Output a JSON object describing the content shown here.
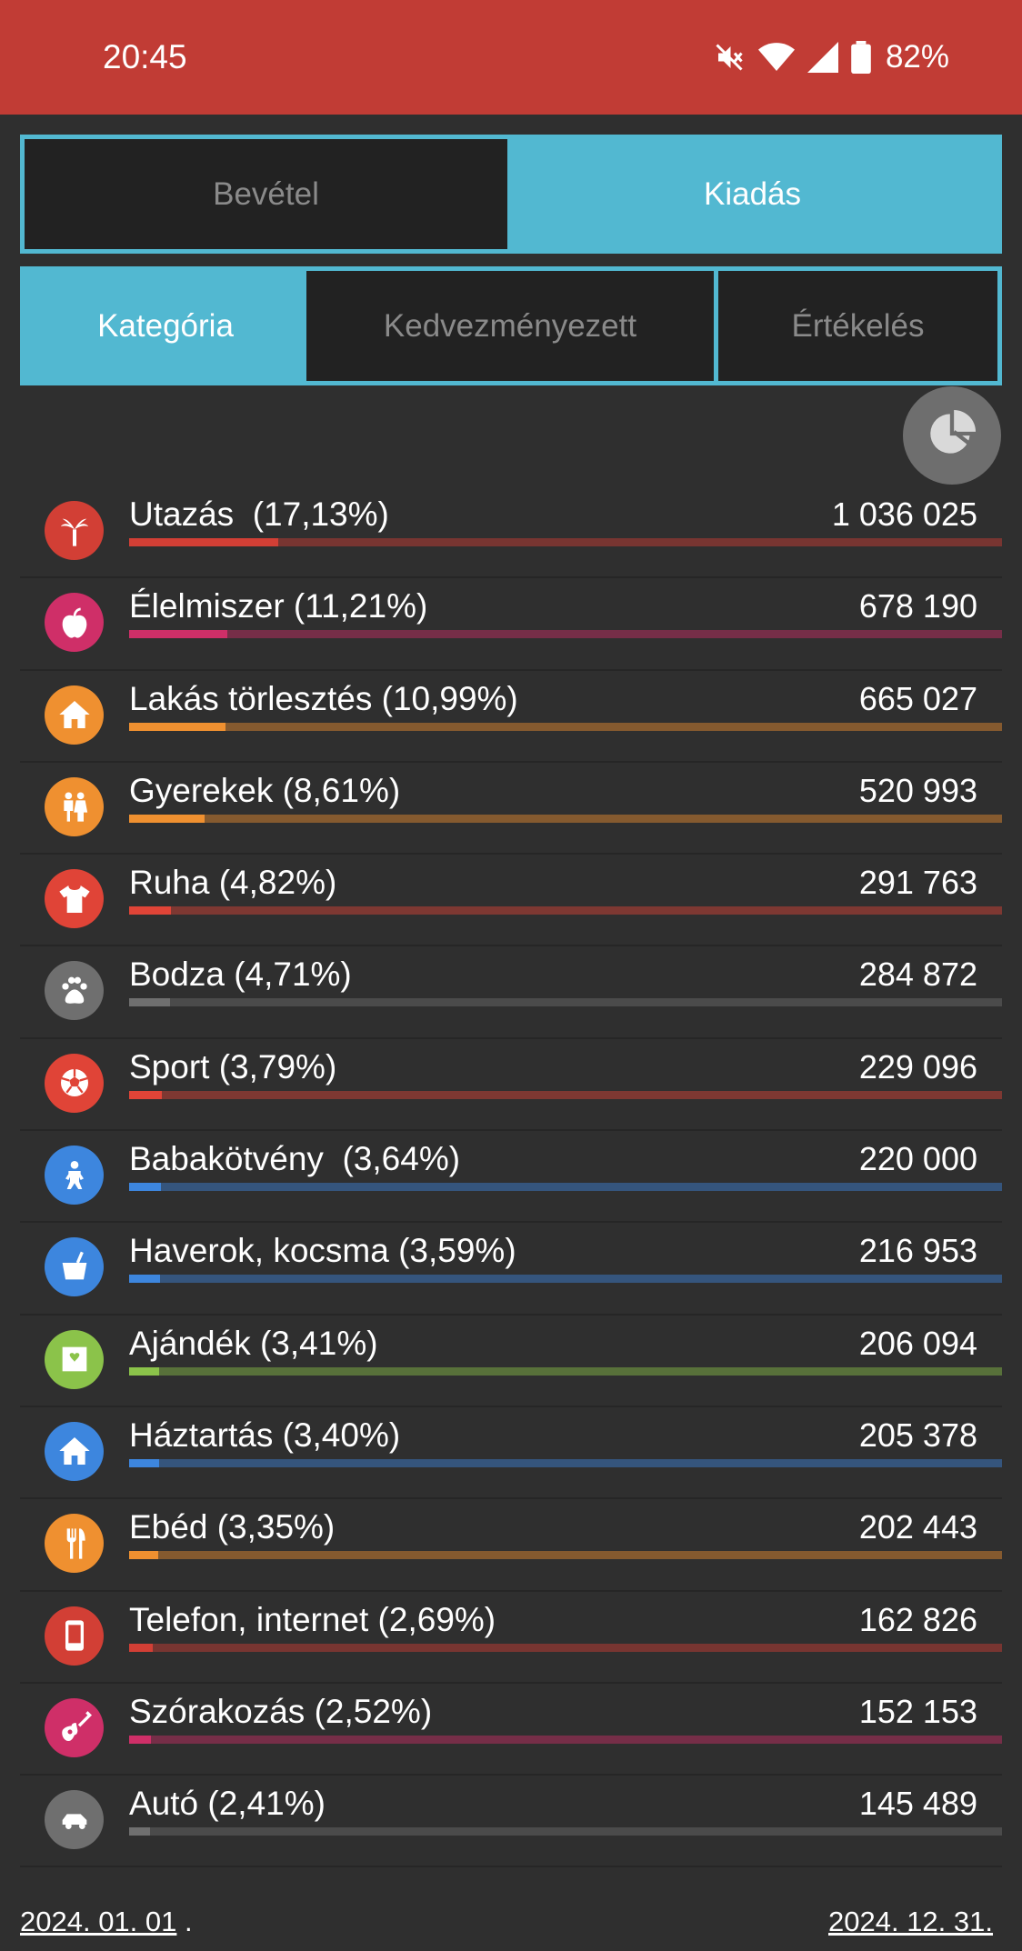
{
  "status_bar": {
    "time": "20:45",
    "battery": "82%",
    "icons": [
      "mute-icon",
      "wifi-icon",
      "signal-icon",
      "battery-icon"
    ]
  },
  "type_tabs": [
    {
      "label": "Bevétel",
      "active": false
    },
    {
      "label": "Kiadás",
      "active": true
    }
  ],
  "view_tabs": [
    {
      "label": "Kategória",
      "active": true
    },
    {
      "label": "Kedvezményezett",
      "active": false
    },
    {
      "label": "Értékelés",
      "active": false
    }
  ],
  "chart_toggle_icon": "pie-chart-icon",
  "categories": [
    {
      "label": "Utazás  (17,13%)",
      "amount": "1 036 025",
      "percent": 17.13,
      "color": "#d23f35",
      "icon": "palm-tree-icon"
    },
    {
      "label": "Élelmiszer (11,21%)",
      "amount": "678 190",
      "percent": 11.21,
      "color": "#cf2f68",
      "icon": "apple-icon"
    },
    {
      "label": "Lakás törlesztés (10,99%)",
      "amount": "665 027",
      "percent": 10.99,
      "color": "#ef9030",
      "icon": "house-icon"
    },
    {
      "label": "Gyerekek (8,61%)",
      "amount": "520 993",
      "percent": 8.61,
      "color": "#ef9030",
      "icon": "children-icon"
    },
    {
      "label": "Ruha (4,82%)",
      "amount": "291 763",
      "percent": 4.82,
      "color": "#e04437",
      "icon": "tshirt-icon"
    },
    {
      "label": "Bodza (4,71%)",
      "amount": "284 872",
      "percent": 4.71,
      "color": "#6f6f6f",
      "icon": "paw-icon"
    },
    {
      "label": "Sport (3,79%)",
      "amount": "229 096",
      "percent": 3.79,
      "color": "#e04437",
      "icon": "soccer-ball-icon"
    },
    {
      "label": "Babakötvény  (3,64%)",
      "amount": "220 000",
      "percent": 3.64,
      "color": "#3d86de",
      "icon": "baby-icon"
    },
    {
      "label": "Haverok, kocsma (3,59%)",
      "amount": "216 953",
      "percent": 3.59,
      "color": "#3d86de",
      "icon": "cup-icon"
    },
    {
      "label": "Ajándék (3,41%)",
      "amount": "206 094",
      "percent": 3.41,
      "color": "#8bc34a",
      "icon": "gift-box-icon"
    },
    {
      "label": "Háztartás (3,40%)",
      "amount": "205 378",
      "percent": 3.4,
      "color": "#3d86de",
      "icon": "home-icon"
    },
    {
      "label": "Ebéd (3,35%)",
      "amount": "202 443",
      "percent": 3.35,
      "color": "#ef9030",
      "icon": "fork-knife-icon"
    },
    {
      "label": "Telefon, internet (2,69%)",
      "amount": "162 826",
      "percent": 2.69,
      "color": "#d23f35",
      "icon": "phone-icon"
    },
    {
      "label": "Szórakozás (2,52%)",
      "amount": "152 153",
      "percent": 2.52,
      "color": "#cf2f68",
      "icon": "guitar-icon"
    },
    {
      "label": "Autó (2,41%)",
      "amount": "145 489",
      "percent": 2.41,
      "color": "#6f6f6f",
      "icon": "car-icon"
    }
  ],
  "footer": {
    "start_date": "2024. 01. 01",
    "end_date": "2024. 12. 31."
  }
}
